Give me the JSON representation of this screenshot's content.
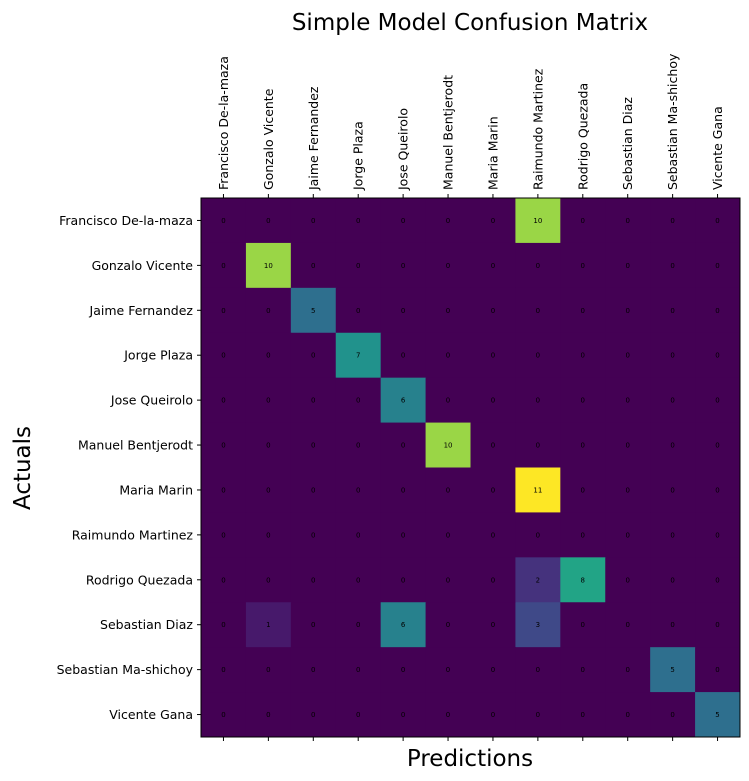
{
  "chart_data": {
    "type": "heatmap",
    "title": "Simple Model Confusion Matrix",
    "xlabel": "Predictions",
    "ylabel": "Actuals",
    "x_categories": [
      "Francisco De-la-maza",
      "Gonzalo Vicente",
      "Jaime Fernandez",
      "Jorge Plaza",
      "Jose Queirolo",
      "Manuel Bentjerodt",
      "Maria Marin",
      "Raimundo Martinez",
      "Rodrigo Quezada",
      "Sebastian Diaz",
      "Sebastian Ma-shichoy",
      "Vicente Gana"
    ],
    "y_categories": [
      "Francisco De-la-maza",
      "Gonzalo Vicente",
      "Jaime Fernandez",
      "Jorge Plaza",
      "Jose Queirolo",
      "Manuel Bentjerodt",
      "Maria Marin",
      "Raimundo Martinez",
      "Rodrigo Quezada",
      "Sebastian Diaz",
      "Sebastian Ma-shichoy",
      "Vicente Gana"
    ],
    "matrix": [
      [
        0,
        0,
        0,
        0,
        0,
        0,
        0,
        10,
        0,
        0,
        0,
        0
      ],
      [
        0,
        10,
        0,
        0,
        0,
        0,
        0,
        0,
        0,
        0,
        0,
        0
      ],
      [
        0,
        0,
        5,
        0,
        0,
        0,
        0,
        0,
        0,
        0,
        0,
        0
      ],
      [
        0,
        0,
        0,
        7,
        0,
        0,
        0,
        0,
        0,
        0,
        0,
        0
      ],
      [
        0,
        0,
        0,
        0,
        6,
        0,
        0,
        0,
        0,
        0,
        0,
        0
      ],
      [
        0,
        0,
        0,
        0,
        0,
        10,
        0,
        0,
        0,
        0,
        0,
        0
      ],
      [
        0,
        0,
        0,
        0,
        0,
        0,
        0,
        11,
        0,
        0,
        0,
        0
      ],
      [
        0,
        0,
        0,
        0,
        0,
        0,
        0,
        0,
        0,
        0,
        0,
        0
      ],
      [
        0,
        0,
        0,
        0,
        0,
        0,
        0,
        2,
        8,
        0,
        0,
        0
      ],
      [
        0,
        1,
        0,
        0,
        6,
        0,
        0,
        3,
        0,
        0,
        0,
        0
      ],
      [
        0,
        0,
        0,
        0,
        0,
        0,
        0,
        0,
        0,
        0,
        5,
        0
      ],
      [
        0,
        0,
        0,
        0,
        0,
        0,
        0,
        0,
        0,
        0,
        0,
        5
      ]
    ],
    "vmin": 0,
    "vmax": 11,
    "colormap": "viridis",
    "x_ticks_position": "top",
    "grid": false,
    "legend": false
  }
}
